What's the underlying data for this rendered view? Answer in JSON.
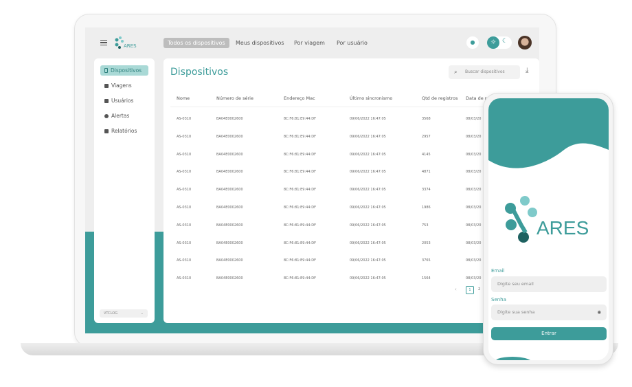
{
  "colors": {
    "accent": "#3d9c9a",
    "active_bg": "#a9d9d6"
  },
  "brand": "ARES",
  "topbar": {
    "tabs": [
      "Todos os dispositivos",
      "Meus dispositivos",
      "Por viagem",
      "Por usuário"
    ],
    "active_tab": 0,
    "icons": [
      "menu-icon",
      "bell-icon",
      "sun-icon",
      "moon-icon",
      "avatar"
    ]
  },
  "sidebar": {
    "items": [
      {
        "label": "Dispositivos",
        "icon": "phone-icon"
      },
      {
        "label": "Viagens",
        "icon": "truck-icon"
      },
      {
        "label": "Usuários",
        "icon": "users-icon"
      },
      {
        "label": "Alertas",
        "icon": "alert-icon"
      },
      {
        "label": "Relatórios",
        "icon": "report-icon"
      }
    ],
    "company_select": "VTCLOG"
  },
  "main": {
    "title": "Dispositivos",
    "search_placeholder": "Buscar dispositivos",
    "columns": [
      "Nome",
      "Número de série",
      "Endereço Mac",
      "Último sincronismo",
      "Qtd de registros",
      "Data de r"
    ],
    "rows": [
      [
        "AS-0310",
        "BA04E0002600",
        "8C:F6:81:E9:44:DF",
        "09/06/2022 16:47:05",
        "3568",
        "08/03/20"
      ],
      [
        "AS-0310",
        "BA04E0002600",
        "8C:F6:81:E9:44:DF",
        "09/06/2022 16:47:05",
        "2957",
        "08/03/20"
      ],
      [
        "AS-0310",
        "BA04E0002600",
        "8C:F6:81:E9:44:DF",
        "09/06/2022 16:47:05",
        "4145",
        "08/03/20"
      ],
      [
        "AS-0310",
        "BA04E0002600",
        "8C:F6:81:E9:44:DF",
        "09/06/2022 16:47:05",
        "4871",
        "08/03/20"
      ],
      [
        "AS-0310",
        "BA04E0002600",
        "8C:F6:81:E9:44:DF",
        "09/06/2022 16:47:05",
        "3374",
        "08/03/20"
      ],
      [
        "AS-0310",
        "BA04E0002600",
        "8C:F6:81:E9:44:DF",
        "09/06/2022 16:47:05",
        "1986",
        "08/03/20"
      ],
      [
        "AS-0310",
        "BA04E0002600",
        "8C:F6:81:E9:44:DF",
        "09/06/2022 16:47:05",
        "753",
        "08/03/20"
      ],
      [
        "AS-0310",
        "BA04E0002600",
        "8C:F6:81:E9:44:DF",
        "09/06/2022 16:47:05",
        "2053",
        "08/03/20"
      ],
      [
        "AS-0310",
        "BA04E0002600",
        "8C:F6:81:E9:44:DF",
        "09/06/2022 16:47:05",
        "3765",
        "08/03/20"
      ],
      [
        "AS-0310",
        "BA04E0002600",
        "8C:F6:81:E9:44:DF",
        "09/06/2022 16:47:05",
        "1564",
        "08/03/20"
      ]
    ],
    "pagination": {
      "current": "1",
      "next": "2"
    }
  },
  "phone": {
    "brand": "ARES",
    "email_label": "Email",
    "email_placeholder": "Digite seu email",
    "password_label": "Senha",
    "password_placeholder": "Digite sua senha",
    "submit": "Entrar"
  }
}
